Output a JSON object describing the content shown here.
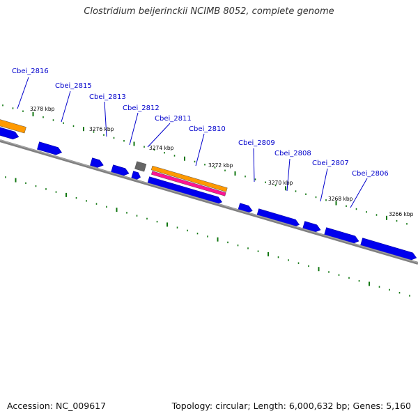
{
  "title": "Clostridium beijerinckii NCIMB 8052, complete genome",
  "footer": {
    "accession": "Accession: NC_009617",
    "summary": "Topology: circular; Length: 6,000,632 bp; Genes: 5,160"
  },
  "colors": {
    "backbone": "#808080",
    "gene": "#0000ee",
    "gene_label": "#0000cc",
    "tick": "#117711",
    "orange_feature": "#ff9900",
    "pink_feature": "#ff1493",
    "gray_feature": "#666666"
  },
  "gene_labels": [
    {
      "name": "Cbei_2816"
    },
    {
      "name": "Cbei_2815"
    },
    {
      "name": "Cbei_2813"
    },
    {
      "name": "Cbei_2812"
    },
    {
      "name": "Cbei_2811"
    },
    {
      "name": "Cbei_2810"
    },
    {
      "name": "Cbei_2809"
    },
    {
      "name": "Cbei_2808"
    },
    {
      "name": "Cbei_2807"
    },
    {
      "name": "Cbei_2806"
    }
  ],
  "kbp_labels": [
    "3278 kbp",
    "3276 kbp",
    "3274 kbp",
    "3272 kbp",
    "3270 kbp",
    "3268 kbp",
    "3266 kbp"
  ]
}
